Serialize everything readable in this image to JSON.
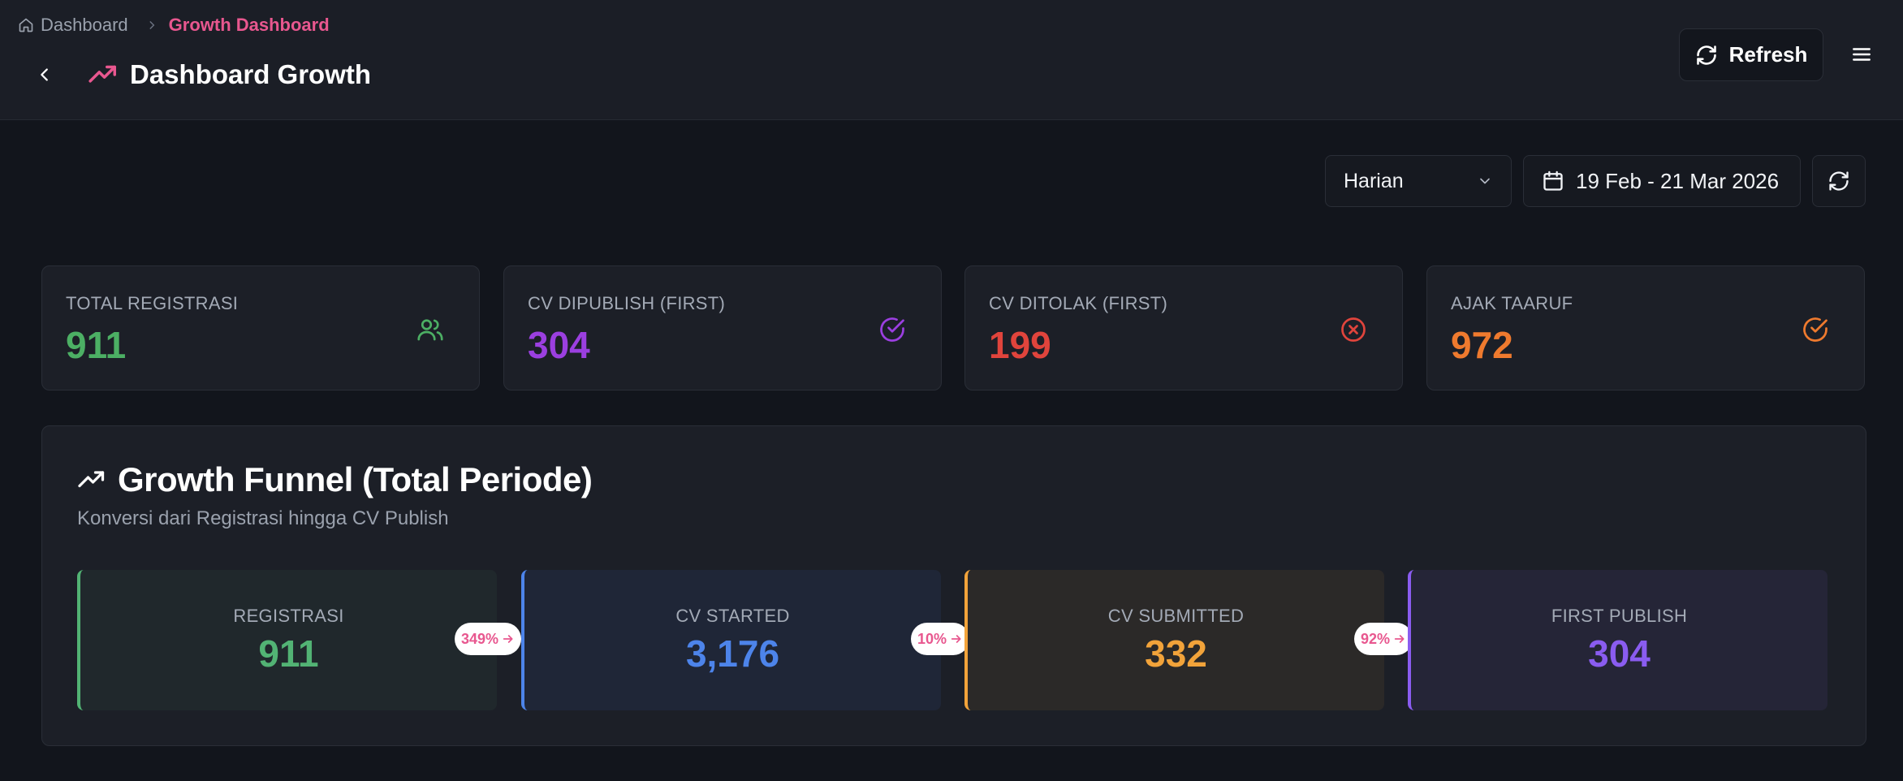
{
  "breadcrumb": {
    "home": "Dashboard",
    "current": "Growth Dashboard"
  },
  "header": {
    "title": "Dashboard Growth",
    "refresh_label": "Refresh"
  },
  "filters": {
    "period": "Harian",
    "date_range": "19 Feb - 21 Mar 2026"
  },
  "stats": [
    {
      "label": "TOTAL REGISTRASI",
      "value": "911",
      "color": "#4caf64",
      "icon": "users-icon"
    },
    {
      "label": "CV DIPUBLISH (FIRST)",
      "value": "304",
      "color": "#9b3fe0",
      "icon": "check-circle-icon"
    },
    {
      "label": "CV DITOLAK (FIRST)",
      "value": "199",
      "color": "#e0443c",
      "icon": "x-circle-icon"
    },
    {
      "label": "AJAK TAARUF",
      "value": "972",
      "color": "#ef7a2e",
      "icon": "check-circle-icon"
    }
  ],
  "funnel": {
    "title": "Growth Funnel (Total Periode)",
    "subtitle": "Konversi dari Registrasi hingga CV Publish",
    "stages": [
      {
        "label": "REGISTRASI",
        "value": "911",
        "color": "#52b374"
      },
      {
        "label": "CV STARTED",
        "value": "3,176",
        "color": "#4d84ea"
      },
      {
        "label": "CV SUBMITTED",
        "value": "332",
        "color": "#f2a33a"
      },
      {
        "label": "FIRST PUBLISH",
        "value": "304",
        "color": "#8a5cf0"
      }
    ],
    "conversions": [
      "349%",
      "10%",
      "92%"
    ]
  },
  "colors": {
    "accent": "#e8578f",
    "background": "#12151c",
    "card": "#1c1f27"
  }
}
